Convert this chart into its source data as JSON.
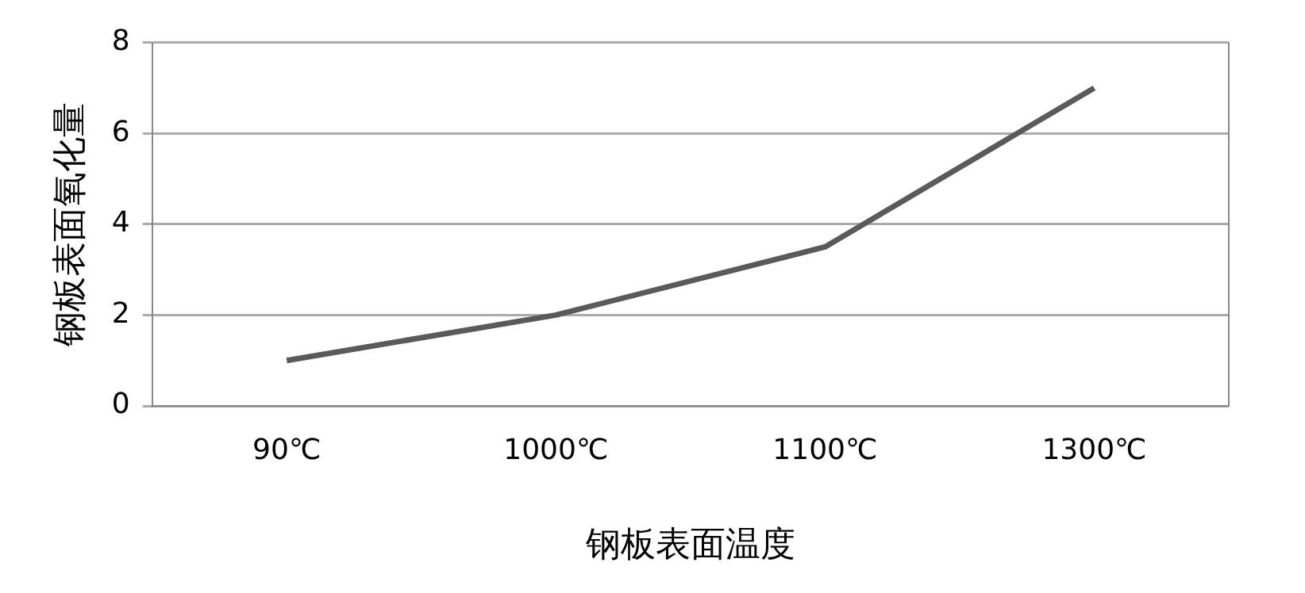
{
  "chart_data": {
    "type": "line",
    "xlabel": "钢板表面温度",
    "ylabel": "钢板表面氧化量",
    "categories": [
      "90℃",
      "1000℃",
      "1100℃",
      "1300℃"
    ],
    "series": [
      {
        "color": "#5a5a5a",
        "values": [
          1,
          2,
          3.5,
          7
        ]
      }
    ],
    "ylim": [
      0,
      8
    ],
    "yticks": [
      0,
      2,
      4,
      6,
      8
    ],
    "grid": "y",
    "legend": false,
    "marker": "none",
    "line_style": "solid"
  }
}
